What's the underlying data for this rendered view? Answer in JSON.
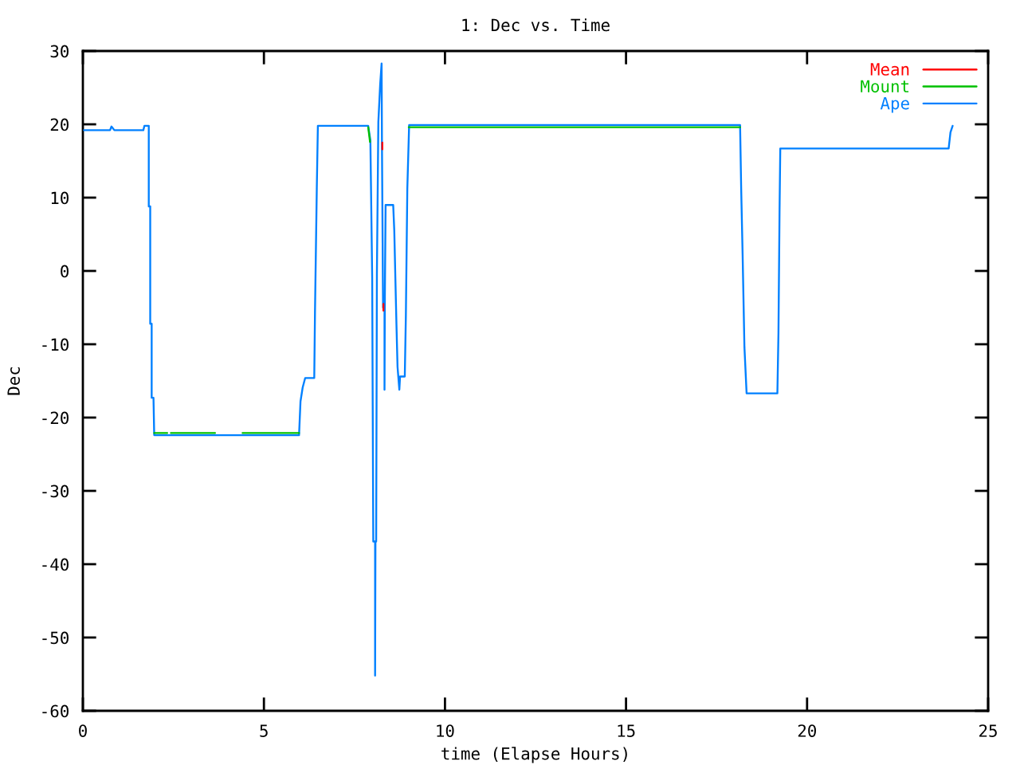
{
  "chart_data": {
    "type": "line",
    "title": "1: Dec vs. Time",
    "xlabel": "time (Elapse Hours)",
    "ylabel": "Dec",
    "xlim": [
      0,
      25
    ],
    "xticks": [
      0,
      5,
      10,
      15,
      20,
      25
    ],
    "ylim": [
      -60,
      30
    ],
    "yticks": [
      -60,
      -50,
      -40,
      -30,
      -20,
      -10,
      0,
      10,
      20,
      30
    ],
    "legend": "top right",
    "line_style": "solid",
    "series": [
      {
        "name": "Mean",
        "color": "#ff0000",
        "x": [
          8.27,
          8.27,
          8.28,
          8.3,
          8.3
        ],
        "values": [
          17.5,
          16.6,
          null,
          -4.5,
          -5.4
        ]
      },
      {
        "name": "Mount",
        "color": "#00c000",
        "x": [
          1.97,
          2.33,
          2.38,
          2.43,
          3.65,
          4.0,
          4.41,
          5.97,
          6.5,
          7.88,
          7.93,
          8.5,
          9.0,
          18.15
        ],
        "values": [
          -22.1,
          -22.1,
          null,
          -22.1,
          -22.1,
          null,
          -22.1,
          -22.1,
          null,
          19.6,
          17.6,
          null,
          19.6,
          19.6
        ]
      },
      {
        "name": "Ape",
        "color": "#0080ff",
        "x": [
          0.03,
          0.75,
          0.79,
          0.87,
          1.67,
          1.7,
          1.82,
          1.82,
          1.86,
          1.86,
          1.9,
          1.9,
          1.95,
          1.97,
          5.97,
          6.01,
          6.07,
          6.14,
          6.39,
          6.41,
          6.46,
          6.49,
          7.88,
          7.94,
          7.99,
          8.02,
          8.07,
          8.07,
          8.08,
          8.1,
          8.12,
          8.16,
          8.21,
          8.25,
          8.26,
          8.29,
          8.33,
          8.33,
          8.34,
          8.36,
          8.57,
          8.6,
          8.63,
          8.66,
          8.69,
          8.74,
          8.76,
          8.89,
          8.92,
          8.96,
          9.01,
          18.15,
          18.18,
          18.22,
          18.27,
          18.33,
          19.18,
          19.21,
          19.24,
          19.26,
          23.91,
          23.96,
          24.02
        ],
        "values": [
          19.2,
          19.2,
          19.7,
          19.2,
          19.2,
          19.8,
          19.8,
          8.8,
          8.8,
          -7.2,
          -7.2,
          -17.3,
          -17.3,
          -22.4,
          -22.4,
          -17.8,
          -15.9,
          -14.6,
          -14.6,
          -5.7,
          11.2,
          19.8,
          19.8,
          17.8,
          -1.0,
          -36.9,
          -36.9,
          -55.2,
          -36.9,
          -36.9,
          -0.4,
          20.3,
          25.4,
          28.3,
          17.1,
          -5.0,
          -3.6,
          -16.2,
          -3.6,
          9.0,
          9.0,
          5.5,
          -1.0,
          -7.3,
          -13.1,
          -16.2,
          -14.4,
          -14.4,
          -6.1,
          11.2,
          19.9,
          19.9,
          11.3,
          2.2,
          -10.4,
          -16.7,
          -16.7,
          -8.4,
          8.3,
          16.7,
          16.7,
          18.9,
          19.8
        ]
      }
    ]
  }
}
